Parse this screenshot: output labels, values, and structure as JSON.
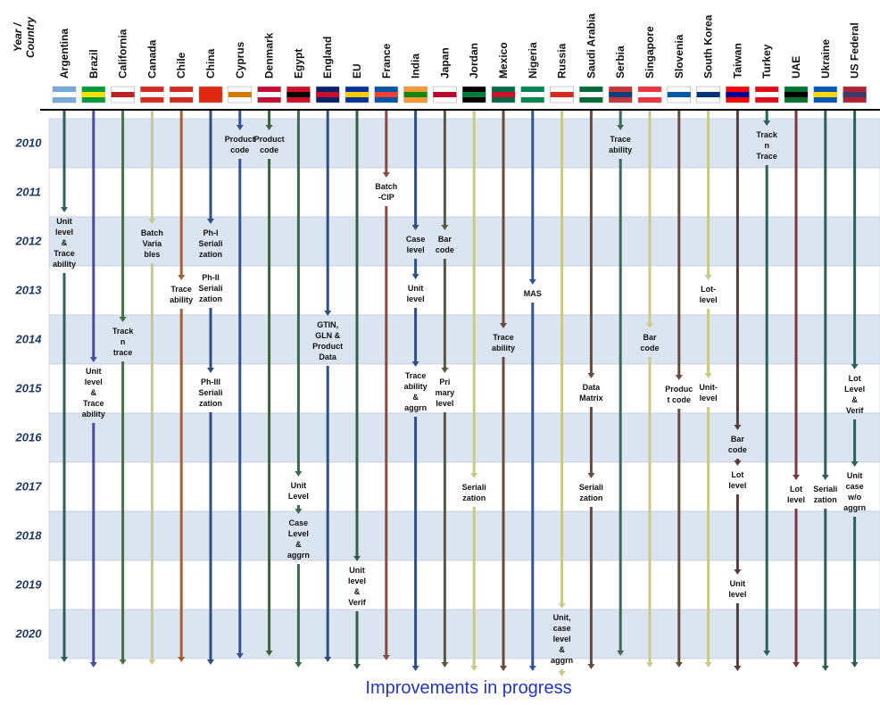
{
  "header": {
    "corner": "Year /\nCountry"
  },
  "years": [
    2010,
    2011,
    2012,
    2013,
    2014,
    2015,
    2016,
    2017,
    2018,
    2019,
    2020
  ],
  "countries": [
    {
      "name": "Argentina",
      "milestones": [
        "Unit\nlevel\n&\nTrace\nability"
      ]
    },
    {
      "name": "Brazil",
      "milestones": [
        "Unit\nlevel\n&\nTrace\nability"
      ]
    },
    {
      "name": "California",
      "milestones": [
        "Track\nn\ntrace"
      ]
    },
    {
      "name": "Canada",
      "milestones": [
        "Batch\nVaria\nbles"
      ]
    },
    {
      "name": "Chile",
      "milestones": [
        "Trace\nability"
      ]
    },
    {
      "name": "China",
      "milestones": [
        "Ph-I\nSeriali\nzation",
        "Ph-II\nSeriali\nzation",
        "Ph-III\nSeriali\nzation"
      ]
    },
    {
      "name": "Cyprus",
      "milestones": [
        "Product\ncode"
      ]
    },
    {
      "name": "Denmark",
      "milestones": [
        "Product\ncode"
      ]
    },
    {
      "name": "Egypt",
      "milestones": [
        "Unit\nLevel",
        "Case\nLevel\n&\naggrn"
      ]
    },
    {
      "name": "England",
      "milestones": [
        "GTIN,\nGLN &\nProduct\nData"
      ]
    },
    {
      "name": "EU",
      "milestones": [
        "Unit\nlevel\n&\nVerif"
      ]
    },
    {
      "name": "France",
      "milestones": [
        "Batch\n-CIP"
      ]
    },
    {
      "name": "India",
      "milestones": [
        "Case\nlevel",
        "Unit\nlevel",
        "Trace\nability\n&\naggrn"
      ]
    },
    {
      "name": "Japan",
      "milestones": [
        "Bar\ncode",
        "Pri\nmary\nlevel"
      ]
    },
    {
      "name": "Jordan",
      "milestones": [
        "Seriali\nzation"
      ]
    },
    {
      "name": "Mexico",
      "milestones": [
        "Trace\nability"
      ]
    },
    {
      "name": "Nigeria",
      "milestones": [
        "MAS"
      ]
    },
    {
      "name": "Russia",
      "milestones": [
        "Unit,\ncase\nlevel\n&\naggrn"
      ]
    },
    {
      "name": "Saudi Arabia",
      "milestones": [
        "Data\nMatrix",
        "Seriali\nzation"
      ]
    },
    {
      "name": "Serbia",
      "milestones": [
        "Trace\nability"
      ]
    },
    {
      "name": "Singapore",
      "milestones": [
        "Bar\ncode"
      ]
    },
    {
      "name": "Slovenia",
      "milestones": [
        "Produc\nt code"
      ]
    },
    {
      "name": "South Korea",
      "milestones": [
        "Lot-\nlevel",
        "Unit-\nlevel"
      ]
    },
    {
      "name": "Taiwan",
      "milestones": [
        "Bar\ncode",
        "Lot\nlevel",
        "Unit\nlevel"
      ]
    },
    {
      "name": "Turkey",
      "milestones": [
        "Track\nn\nTrace"
      ]
    },
    {
      "name": "UAE",
      "milestones": [
        "Lot\nlevel"
      ]
    },
    {
      "name": "Ukraine",
      "milestones": [
        "Seriali\nzation"
      ]
    },
    {
      "name": "US Federal",
      "milestones": [
        "Lot\nLevel\n&\nVerif",
        "Unit\ncase\nw/o\naggrn"
      ]
    }
  ],
  "footer": "Improvements in progress"
}
